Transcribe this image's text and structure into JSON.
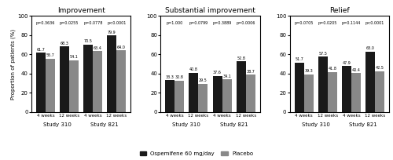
{
  "chart_data": [
    {
      "type": "bar",
      "title": "Improvement",
      "categories": [
        "4 weeks",
        "12 weeks",
        "4 weeks",
        "12 weeks"
      ],
      "series": [
        {
          "name": "Ospemifene 60 mg/day",
          "color": "#1a1a1a",
          "values": [
            61.7,
            68.3,
            70.5,
            79.9
          ]
        },
        {
          "name": "Placebo",
          "color": "#888888",
          "values": [
            55.7,
            54.1,
            63.4,
            64.0
          ]
        }
      ],
      "annotations": [
        "p=0.3636",
        "p=0.0255",
        "p=0.0778",
        "p<0.0001"
      ],
      "group_labels": [
        "Study 310",
        "Study 821"
      ],
      "ylabel": "Proportion of patients (%)",
      "ylim": [
        0,
        100
      ],
      "yticks": [
        0,
        20,
        40,
        60,
        80,
        100
      ],
      "data_labels": true,
      "legend": "lower center"
    },
    {
      "type": "bar",
      "title": "Substantial improvement",
      "categories": [
        "4 weeks",
        "12 weeks",
        "4 weeks",
        "12 weeks"
      ],
      "series": [
        {
          "name": "Ospemifene 60 mg/day",
          "color": "#1a1a1a",
          "values": [
            33.3,
            40.8,
            37.6,
            52.8
          ]
        },
        {
          "name": "Placebo",
          "color": "#888888",
          "values": [
            32.8,
            29.5,
            34.1,
            38.7
          ]
        }
      ],
      "annotations": [
        "p=1.000",
        "p=0.0799",
        "p=0.3889",
        "p=0.0006"
      ],
      "group_labels": [
        "Study 310",
        "Study 821"
      ],
      "ylim": [
        0,
        100
      ],
      "yticks": [
        0,
        20,
        40,
        60,
        80,
        100
      ],
      "data_labels": true
    },
    {
      "type": "bar",
      "title": "Relief",
      "categories": [
        "4 weeks",
        "12 weeks",
        "4 weeks",
        "12 weeks"
      ],
      "series": [
        {
          "name": "Ospemifene 60 mg/day",
          "color": "#1a1a1a",
          "values": [
            51.7,
            57.5,
            47.9,
            63.0
          ]
        },
        {
          "name": "Placebo",
          "color": "#888888",
          "values": [
            39.3,
            41.8,
            40.4,
            42.5
          ]
        }
      ],
      "annotations": [
        "p=0.0705",
        "p=0.0205",
        "p=0.1144",
        "p<0.0001"
      ],
      "group_labels": [
        "Study 310",
        "Study 821"
      ],
      "ylim": [
        0,
        100
      ],
      "yticks": [
        0,
        20,
        40,
        60,
        80,
        100
      ],
      "data_labels": true
    }
  ]
}
